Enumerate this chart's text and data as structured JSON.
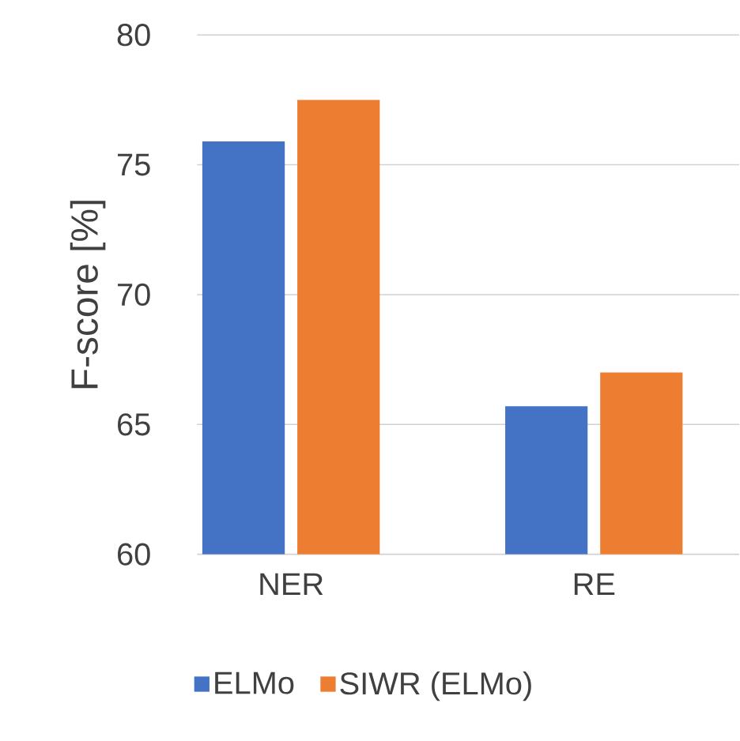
{
  "chart_data": {
    "type": "bar",
    "ylabel": "F-score [%]",
    "categories": [
      "NER",
      "RE"
    ],
    "series": [
      {
        "name": "ELMo",
        "color": "#4472c4",
        "values": [
          75.9,
          65.7
        ]
      },
      {
        "name": "SIWR (ELMo)",
        "color": "#ed7d31",
        "values": [
          77.5,
          67.0
        ]
      }
    ],
    "ylim": [
      60,
      80
    ],
    "yticks": [
      60,
      65,
      70,
      75,
      80
    ],
    "grid": "y",
    "legend": "bottom"
  }
}
